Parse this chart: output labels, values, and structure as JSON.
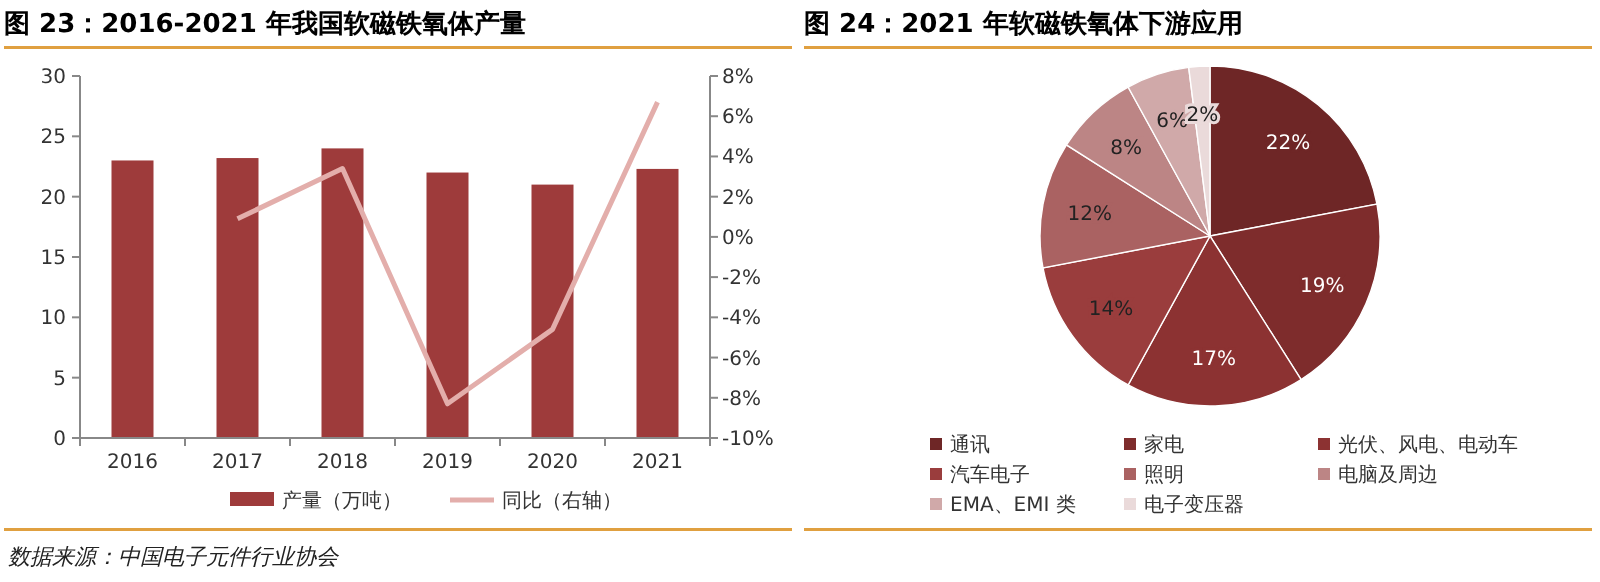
{
  "chart_data": [
    {
      "type": "bar",
      "title": "图 23：2016-2021 年我国软磁铁氧体产量",
      "categories": [
        "2016",
        "2017",
        "2018",
        "2019",
        "2020",
        "2021"
      ],
      "series": [
        {
          "name": "产量（万吨）",
          "type": "bar",
          "color": "#9e3b3b",
          "values": [
            23,
            23.2,
            24,
            22,
            21,
            22.3
          ]
        },
        {
          "name": "同比（右轴）",
          "type": "line",
          "axis": "y2",
          "color": "#e3aeab",
          "values": [
            null,
            0.9,
            3.4,
            -8.3,
            -4.6,
            6.7
          ]
        }
      ],
      "ylim": [
        0,
        30
      ],
      "yticks": [
        0,
        5,
        10,
        15,
        20,
        25,
        30
      ],
      "y2lim": [
        -10,
        8
      ],
      "y2ticks": [
        {
          "value": -10,
          "label": "-10%"
        },
        {
          "value": -8,
          "label": "-8%"
        },
        {
          "value": -6,
          "label": "-6%"
        },
        {
          "value": -4,
          "label": "-4%"
        },
        {
          "value": -2,
          "label": "-2%"
        },
        {
          "value": 0,
          "label": "0%"
        },
        {
          "value": 2,
          "label": "2%"
        },
        {
          "value": 4,
          "label": "4%"
        },
        {
          "value": 6,
          "label": "6%"
        },
        {
          "value": 8,
          "label": "8%"
        }
      ],
      "legend": "bottom",
      "grid": false,
      "marker": "none",
      "annotations": [
        "数据来源：中国电子元件行业协会"
      ]
    },
    {
      "type": "pie",
      "title": "图 24：2021 年软磁铁氧体下游应用",
      "categories": [
        "通讯",
        "家电",
        "光伏、风电、电动车",
        "汽车电子",
        "照明",
        "电脑及周边",
        "EMA、EMI 类",
        "电子变压器"
      ],
      "values": [
        22,
        19,
        17,
        14,
        12,
        8,
        6,
        2
      ],
      "value_labels": [
        "22%",
        "19%",
        "17%",
        "14%",
        "12%",
        "8%",
        "6%",
        "2%"
      ],
      "colors": [
        "#6e2626",
        "#7e2c2c",
        "#8c3232",
        "#9a3d3d",
        "#aa6262",
        "#bc8585",
        "#d0a9a9",
        "#eadada"
      ],
      "legend": "bottom"
    }
  ]
}
